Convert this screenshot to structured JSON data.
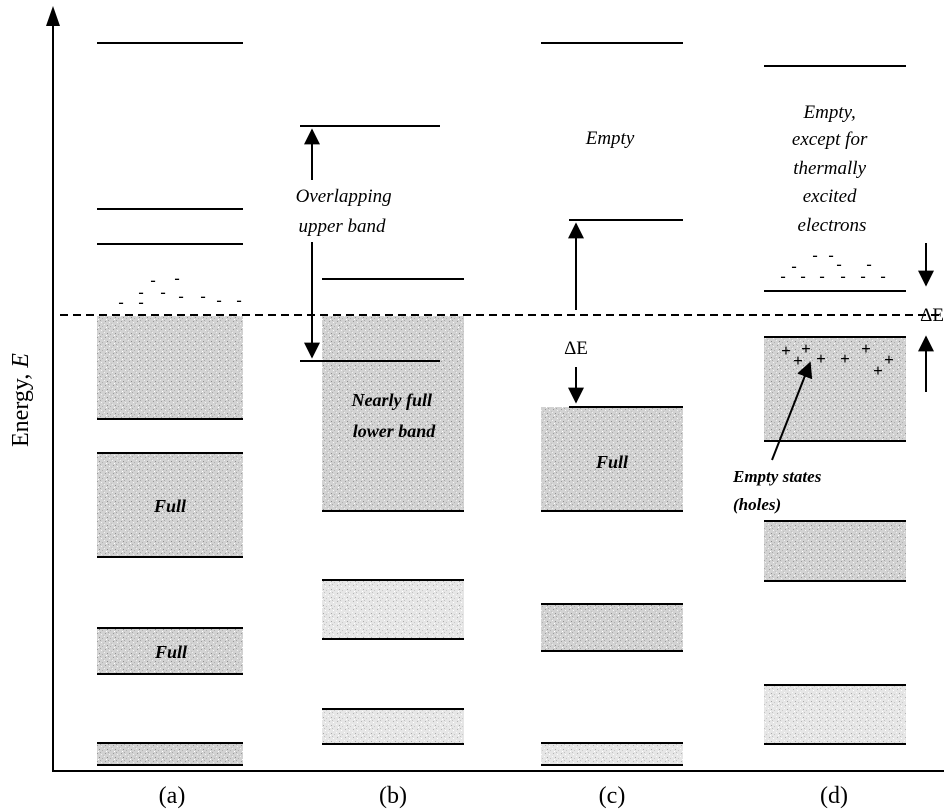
{
  "axis": {
    "y_label_prefix": "Energy, ",
    "y_label_symbol": "E"
  },
  "panels": {
    "a": {
      "label": "(a)",
      "band_1_label": "Full",
      "band_2_label": "Full"
    },
    "b": {
      "label": "(b)",
      "upper_band_label_line1": "Overlapping",
      "upper_band_label_line2": "upper band",
      "lower_band_label_line1": "Nearly full",
      "lower_band_label_line2": "lower band"
    },
    "c": {
      "label": "(c)",
      "empty_label": "Empty",
      "gap_label": "ΔE",
      "full_label": "Full"
    },
    "d": {
      "label": "(d)",
      "empty_label_line1": "Empty,",
      "empty_label_line2": "except for",
      "empty_label_line3": "thermally",
      "empty_label_line4": "excited",
      "empty_label_line5": "electrons",
      "gap_label": "ΔE",
      "holes_label_line1": "Empty states",
      "holes_label_line2": "(holes)"
    }
  },
  "symbols": {
    "electron": "-",
    "hole": "+"
  },
  "colors": {
    "band_fill": "#cfcfcf",
    "band_fill_light": "#e4e4e4",
    "line": "#000000"
  }
}
